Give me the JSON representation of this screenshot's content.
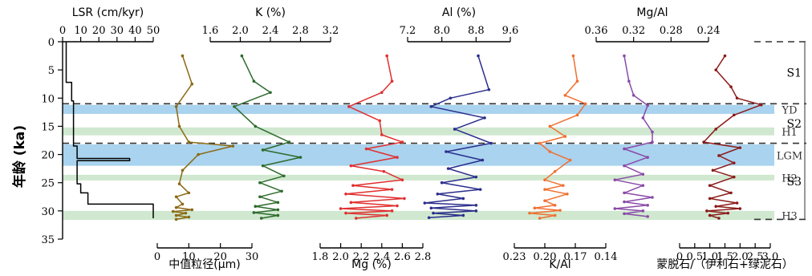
{
  "chart_data": {
    "type": "line",
    "y_axis": {
      "label": "年龄 (ka)",
      "range": [
        0,
        35
      ],
      "ticks": [
        0,
        5,
        10,
        15,
        20,
        25,
        30,
        35
      ]
    },
    "bands": [
      {
        "name": "YD",
        "from": 11.2,
        "to": 12.8,
        "color": "#a9d3ee"
      },
      {
        "name": "H1",
        "from": 15.2,
        "to": 16.6,
        "color": "#cfe8cf"
      },
      {
        "name": "LGM",
        "from": 18.2,
        "to": 22.0,
        "color": "#a9d3ee"
      },
      {
        "name": "H2",
        "from": 23.6,
        "to": 24.6,
        "color": "#cfe8cf"
      },
      {
        "name": "H3",
        "from": 30.0,
        "to": 31.6,
        "color": "#cfe8cf"
      }
    ],
    "dashed_lines": [
      11.0,
      18.0
    ],
    "units": [
      {
        "name": "S1",
        "from": 0,
        "to": 11.0
      },
      {
        "name": "S2",
        "from": 11.0,
        "to": 18.0
      },
      {
        "name": "S3",
        "from": 18.0,
        "to": 31.5
      }
    ],
    "panels": [
      {
        "id": "lsr",
        "title": "LSR (cm/kyr)",
        "title_pos": "top",
        "range": [
          0,
          50
        ],
        "ticks": [
          0,
          10,
          20,
          30,
          40,
          50
        ],
        "reversed": false,
        "color": "#000000",
        "step": true,
        "markers": false,
        "points": [
          [
            2,
            0
          ],
          [
            2,
            7.2
          ],
          [
            5,
            7.2
          ],
          [
            5,
            10.5
          ],
          [
            6,
            10.5
          ],
          [
            6,
            18.5
          ],
          [
            8,
            18.5
          ],
          [
            8,
            20.7
          ],
          [
            37,
            20.7
          ],
          [
            37,
            21.1
          ],
          [
            8,
            21.1
          ],
          [
            8,
            25.2
          ],
          [
            10,
            25.2
          ],
          [
            10,
            26.8
          ],
          [
            14,
            26.8
          ],
          [
            14,
            28.8
          ],
          [
            50,
            28.8
          ],
          [
            50,
            31.3
          ]
        ]
      },
      {
        "id": "median_grain",
        "title": "中值粒径(μm)",
        "title_pos": "bottom",
        "range": [
          0,
          30
        ],
        "ticks": [
          0,
          10,
          20,
          30
        ],
        "reversed": false,
        "color": "#8b6914",
        "step": false,
        "markers": true,
        "points": [
          [
            8,
            2.5
          ],
          [
            11,
            7.5
          ],
          [
            6,
            11.5
          ],
          [
            7,
            15.0
          ],
          [
            10,
            17.8
          ],
          [
            24,
            18.5
          ],
          [
            13,
            20.0
          ],
          [
            8,
            22.8
          ],
          [
            7,
            25.2
          ],
          [
            10,
            26.8
          ],
          [
            6,
            27.5
          ],
          [
            8,
            28.8
          ],
          [
            6,
            29.4
          ],
          [
            11,
            29.8
          ],
          [
            5,
            30.1
          ],
          [
            9,
            30.4
          ],
          [
            6,
            30.8
          ],
          [
            10,
            31.1
          ],
          [
            6,
            31.5
          ]
        ]
      },
      {
        "id": "k",
        "title": "K (%)",
        "title_pos": "top",
        "range": [
          1.6,
          3.2
        ],
        "ticks": [
          1.6,
          2.0,
          2.4,
          2.8,
          3.2
        ],
        "tick_labels": [
          "1.6",
          "2.0",
          "2.4",
          "2.8",
          "3.2"
        ],
        "reversed": false,
        "color": "#2e6b2e",
        "step": false,
        "markers": true,
        "points": [
          [
            2.02,
            2.5
          ],
          [
            2.18,
            7.0
          ],
          [
            2.4,
            9.0
          ],
          [
            1.92,
            11.5
          ],
          [
            2.2,
            15.0
          ],
          [
            2.65,
            17.8
          ],
          [
            2.3,
            19.2
          ],
          [
            2.8,
            20.5
          ],
          [
            2.3,
            22.0
          ],
          [
            2.58,
            23.8
          ],
          [
            2.26,
            25.0
          ],
          [
            2.55,
            26.5
          ],
          [
            2.26,
            27.5
          ],
          [
            2.5,
            28.5
          ],
          [
            2.2,
            29.2
          ],
          [
            2.5,
            29.8
          ],
          [
            2.18,
            30.3
          ],
          [
            2.5,
            30.8
          ],
          [
            2.28,
            31.3
          ]
        ]
      },
      {
        "id": "mg",
        "title": "Mg (%)",
        "title_pos": "bottom",
        "range": [
          1.8,
          2.8
        ],
        "ticks": [
          1.8,
          2.0,
          2.2,
          2.4,
          2.6,
          2.8
        ],
        "tick_labels": [
          "1.8",
          "2.0",
          "2.2",
          "2.4",
          "2.6",
          "2.8"
        ],
        "reversed": false,
        "color": "#e03030",
        "step": false,
        "markers": true,
        "points": [
          [
            2.45,
            2.5
          ],
          [
            2.5,
            7.0
          ],
          [
            2.4,
            9.0
          ],
          [
            2.08,
            11.5
          ],
          [
            2.38,
            14.0
          ],
          [
            2.4,
            16.5
          ],
          [
            2.6,
            17.8
          ],
          [
            2.25,
            19.0
          ],
          [
            2.55,
            20.5
          ],
          [
            2.1,
            22.0
          ],
          [
            2.42,
            23.0
          ],
          [
            2.6,
            24.5
          ],
          [
            2.12,
            25.5
          ],
          [
            2.5,
            26.2
          ],
          [
            2.05,
            27.0
          ],
          [
            2.62,
            27.8
          ],
          [
            2.1,
            28.5
          ],
          [
            2.55,
            29.1
          ],
          [
            2.0,
            29.6
          ],
          [
            2.5,
            30.0
          ],
          [
            2.05,
            30.4
          ],
          [
            2.45,
            30.8
          ],
          [
            2.15,
            31.3
          ]
        ]
      },
      {
        "id": "al",
        "title": "Al (%)",
        "title_pos": "top",
        "range": [
          7.2,
          9.6
        ],
        "ticks": [
          7.2,
          8.0,
          8.8,
          9.6
        ],
        "tick_labels": [
          "7.2",
          "8.0",
          "8.8",
          "9.6"
        ],
        "reversed": false,
        "color": "#2b2e8c",
        "step": false,
        "markers": true,
        "points": [
          [
            8.85,
            2.5
          ],
          [
            9.1,
            8.5
          ],
          [
            8.2,
            10.0
          ],
          [
            7.75,
            11.5
          ],
          [
            9.0,
            13.5
          ],
          [
            8.3,
            15.5
          ],
          [
            9.15,
            18.0
          ],
          [
            8.1,
            19.5
          ],
          [
            8.95,
            21.0
          ],
          [
            8.15,
            22.5
          ],
          [
            8.8,
            24.0
          ],
          [
            8.0,
            25.0
          ],
          [
            8.9,
            26.2
          ],
          [
            7.9,
            27.0
          ],
          [
            8.5,
            27.8
          ],
          [
            7.6,
            28.6
          ],
          [
            8.8,
            29.0
          ],
          [
            7.75,
            29.5
          ],
          [
            8.8,
            30.0
          ],
          [
            7.8,
            30.4
          ],
          [
            8.5,
            30.8
          ],
          [
            7.7,
            31.2
          ]
        ]
      },
      {
        "id": "k_al",
        "title": "K/Al",
        "title_pos": "bottom",
        "range": [
          0.23,
          0.14
        ],
        "ticks": [
          0.23,
          0.2,
          0.17,
          0.14
        ],
        "tick_labels": [
          "0.23",
          "0.20",
          "0.17",
          "0.14"
        ],
        "reversed": true,
        "color": "#f07030",
        "step": false,
        "markers": true,
        "points": [
          [
            0.172,
            2.5
          ],
          [
            0.168,
            7.0
          ],
          [
            0.18,
            9.5
          ],
          [
            0.16,
            11.0
          ],
          [
            0.168,
            13.0
          ],
          [
            0.195,
            15.0
          ],
          [
            0.18,
            16.8
          ],
          [
            0.205,
            18.0
          ],
          [
            0.195,
            19.5
          ],
          [
            0.175,
            21.0
          ],
          [
            0.19,
            23.0
          ],
          [
            0.2,
            24.5
          ],
          [
            0.182,
            25.5
          ],
          [
            0.2,
            26.2
          ],
          [
            0.178,
            27.0
          ],
          [
            0.2,
            28.2
          ],
          [
            0.19,
            29.0
          ],
          [
            0.21,
            29.5
          ],
          [
            0.185,
            29.9
          ],
          [
            0.215,
            30.4
          ],
          [
            0.19,
            30.8
          ],
          [
            0.205,
            31.3
          ]
        ]
      },
      {
        "id": "mg_al",
        "title": "Mg/Al",
        "title_pos": "top",
        "range": [
          0.36,
          0.24
        ],
        "ticks": [
          0.36,
          0.32,
          0.28,
          0.24
        ],
        "tick_labels": [
          "0.36",
          "0.32",
          "0.28",
          "0.24"
        ],
        "reversed": true,
        "color": "#8a4aa8",
        "step": false,
        "markers": true,
        "points": [
          [
            0.33,
            2.5
          ],
          [
            0.325,
            7.0
          ],
          [
            0.32,
            9.5
          ],
          [
            0.305,
            11.3
          ],
          [
            0.31,
            13.5
          ],
          [
            0.3,
            16.0
          ],
          [
            0.3,
            17.8
          ],
          [
            0.33,
            19.0
          ],
          [
            0.305,
            20.5
          ],
          [
            0.33,
            22.0
          ],
          [
            0.31,
            23.5
          ],
          [
            0.34,
            24.5
          ],
          [
            0.31,
            25.5
          ],
          [
            0.33,
            26.8
          ],
          [
            0.3,
            27.6
          ],
          [
            0.33,
            28.4
          ],
          [
            0.305,
            29.0
          ],
          [
            0.34,
            29.6
          ],
          [
            0.31,
            30.0
          ],
          [
            0.33,
            30.5
          ],
          [
            0.305,
            31.0
          ]
        ]
      },
      {
        "id": "smectite_ratio",
        "title": "蒙脱石/（伊利石+绿泥石）",
        "title_pos": "bottom",
        "range": [
          0,
          3.0
        ],
        "ticks": [
          0,
          0.5,
          1.0,
          1.5,
          2.0,
          2.5,
          3.0
        ],
        "tick_labels": [
          "0",
          "0.5",
          "1.0",
          "1.5",
          "2.0",
          "2.5",
          "3.0"
        ],
        "reversed": false,
        "color": "#8b1a1a",
        "step": false,
        "markers": true,
        "points": [
          [
            1.5,
            2.5
          ],
          [
            1.2,
            5.0
          ],
          [
            1.7,
            8.0
          ],
          [
            1.9,
            10.0
          ],
          [
            2.7,
            11.2
          ],
          [
            1.8,
            13.0
          ],
          [
            1.2,
            15.5
          ],
          [
            0.8,
            17.8
          ],
          [
            2.0,
            18.8
          ],
          [
            1.3,
            20.2
          ],
          [
            1.8,
            21.5
          ],
          [
            1.1,
            22.8
          ],
          [
            1.8,
            24.0
          ],
          [
            1.0,
            25.5
          ],
          [
            1.7,
            26.8
          ],
          [
            1.0,
            27.8
          ],
          [
            1.9,
            28.6
          ],
          [
            1.2,
            29.2
          ],
          [
            2.0,
            29.6
          ],
          [
            0.9,
            30.0
          ],
          [
            1.6,
            30.4
          ],
          [
            1.0,
            30.8
          ],
          [
            1.3,
            31.3
          ]
        ]
      }
    ]
  }
}
